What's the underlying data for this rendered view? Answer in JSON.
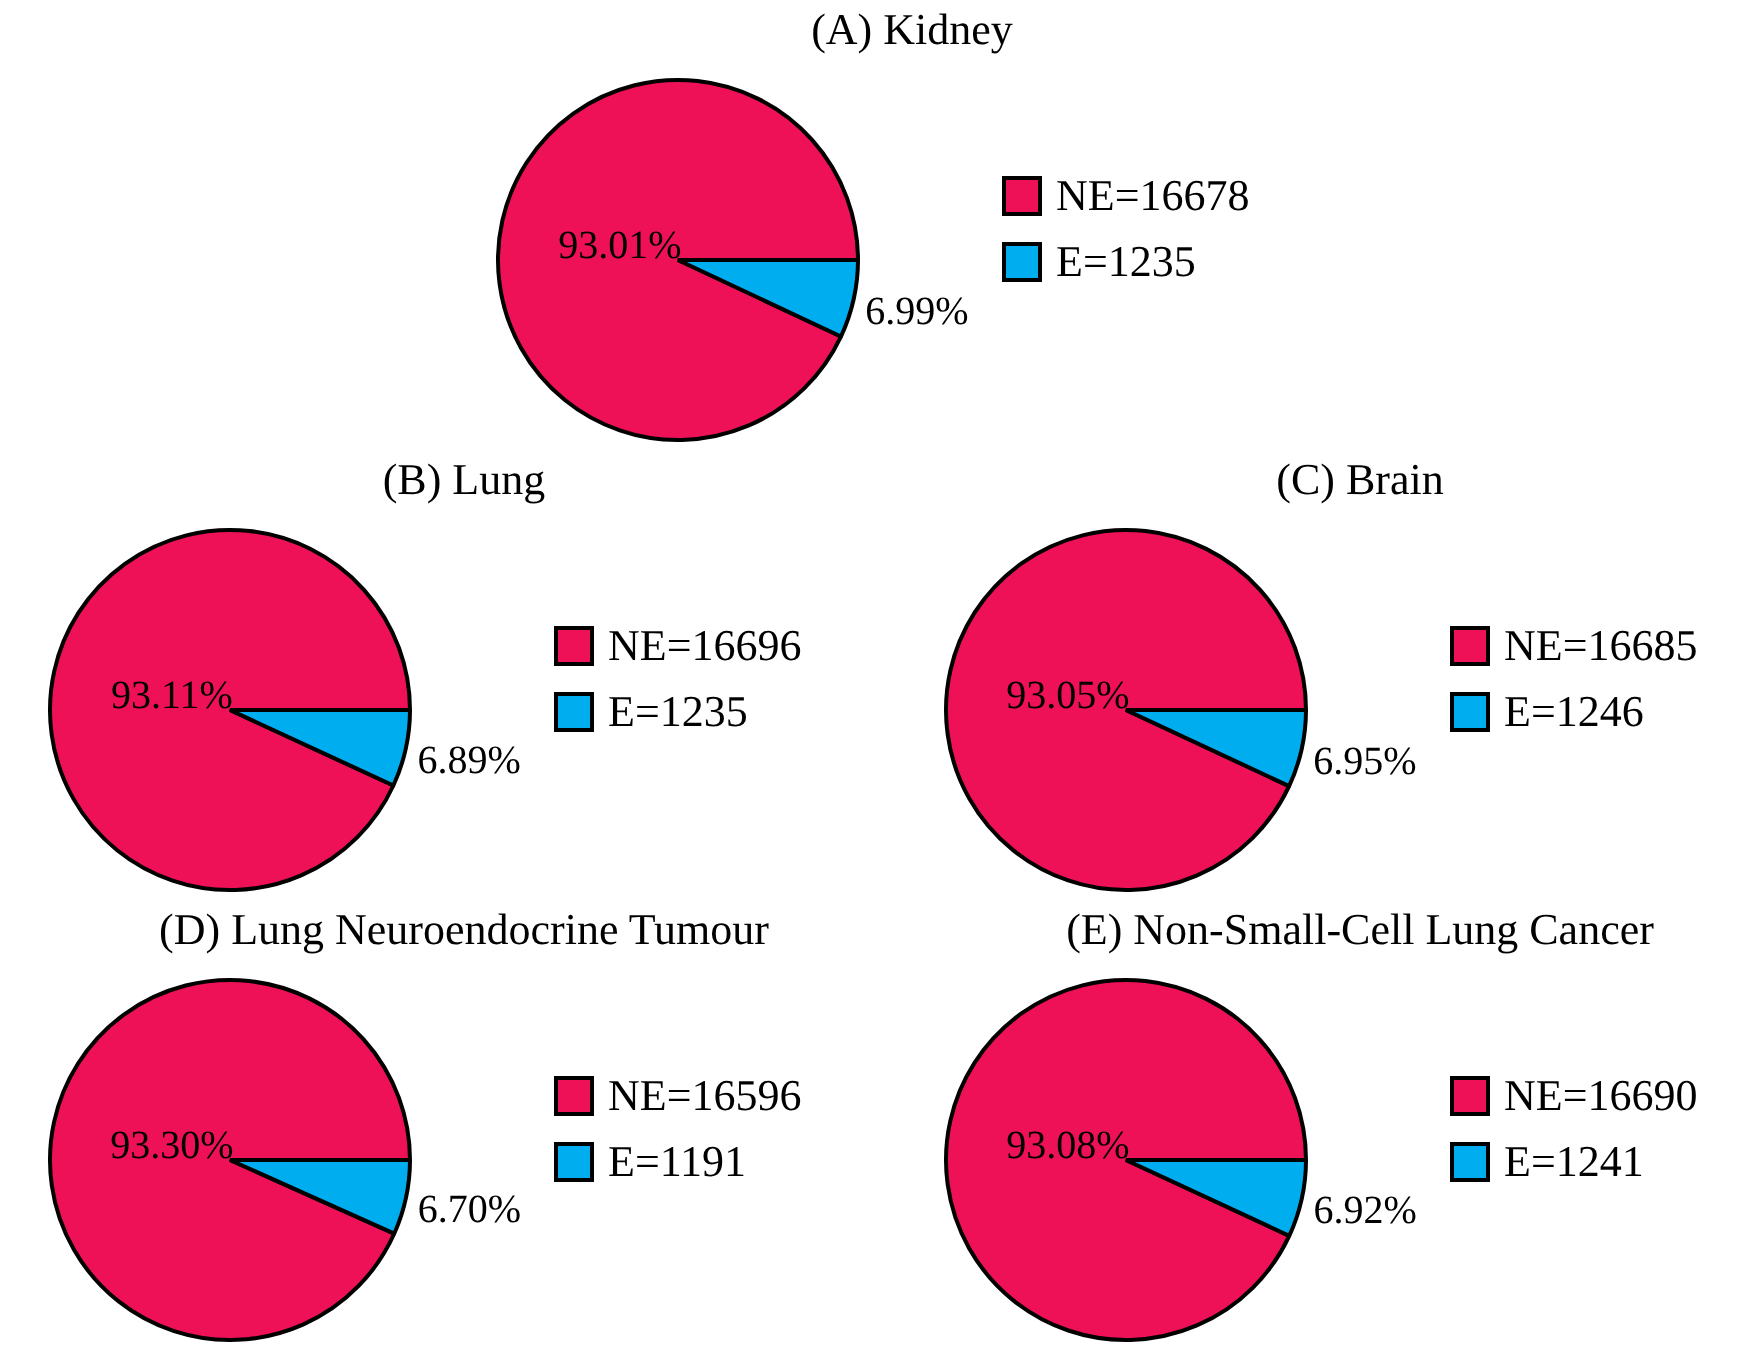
{
  "chart_data": [
    {
      "type": "pie",
      "title": "(A) Kidney",
      "categories": [
        "NE=16678",
        "E=1235"
      ],
      "values": [
        93.01,
        6.99
      ],
      "colors": [
        "#ee1157",
        "#00aeef"
      ],
      "value_labels": [
        "93.01%",
        "6.99%"
      ],
      "legend": "right"
    },
    {
      "type": "pie",
      "title": "(B) Lung",
      "categories": [
        "NE=16696",
        "E=1235"
      ],
      "values": [
        93.11,
        6.89
      ],
      "colors": [
        "#ee1157",
        "#00aeef"
      ],
      "value_labels": [
        "93.11%",
        "6.89%"
      ],
      "legend": "right"
    },
    {
      "type": "pie",
      "title": "(C) Brain",
      "categories": [
        "NE=16685",
        "E=1246"
      ],
      "values": [
        93.05,
        6.95
      ],
      "colors": [
        "#ee1157",
        "#00aeef"
      ],
      "value_labels": [
        "93.05%",
        "6.95%"
      ],
      "legend": "right"
    },
    {
      "type": "pie",
      "title": "(D) Lung Neuroendocrine Tumour",
      "categories": [
        "NE=16596",
        "E=1191"
      ],
      "values": [
        93.3,
        6.7
      ],
      "colors": [
        "#ee1157",
        "#00aeef"
      ],
      "value_labels": [
        "93.30%",
        "6.70%"
      ],
      "legend": "right"
    },
    {
      "type": "pie",
      "title": "(E) Non-Small-Cell Lung Cancer",
      "categories": [
        "NE=16690",
        "E=1241"
      ],
      "values": [
        93.08,
        6.92
      ],
      "colors": [
        "#ee1157",
        "#00aeef"
      ],
      "value_labels": [
        "93.08%",
        "6.92%"
      ],
      "legend": "right"
    }
  ]
}
